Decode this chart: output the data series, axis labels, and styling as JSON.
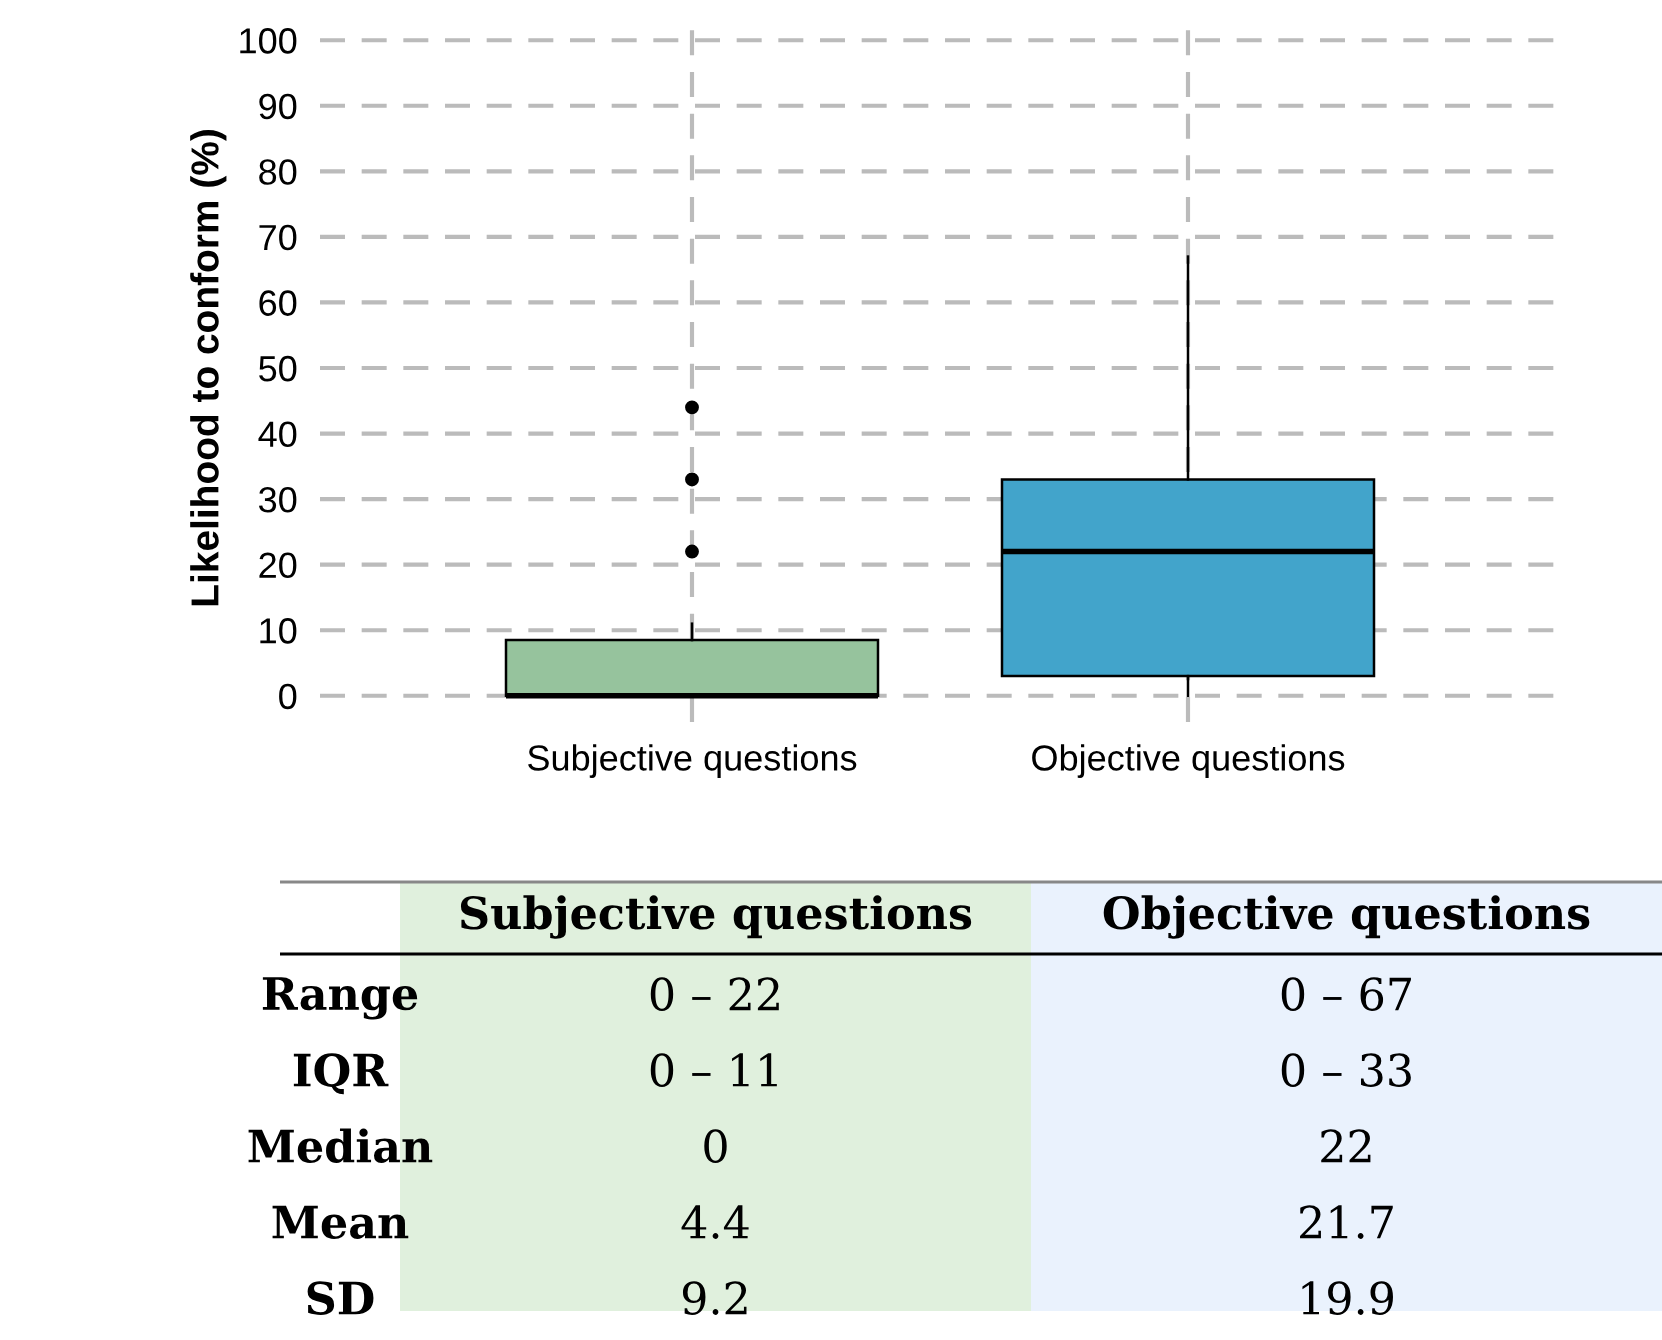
{
  "chart_data": [
    {
      "type": "box",
      "ylabel": "Likelihood to conform (%)",
      "categories": [
        "Subjective questions",
        "Objective questions"
      ],
      "colors": [
        "#96c39d",
        "#42a4cb"
      ],
      "boxes": [
        {
          "low": 0,
          "q1": 0,
          "median": 0,
          "q3": 8.5,
          "high": 11,
          "outliers": [
            22,
            33,
            44
          ]
        },
        {
          "low": 0,
          "q1": 3,
          "median": 22,
          "q3": 33,
          "high": 67
        }
      ],
      "ylim": [
        -4,
        104
      ],
      "yticks": [
        0,
        10,
        20,
        30,
        40,
        50,
        60,
        70,
        80,
        90,
        100
      ],
      "grid": true
    },
    {
      "type": "other",
      "categories": [
        "Subjective questions",
        "Objective questions"
      ],
      "y_categories": [
        "Range",
        "IQR",
        "Median",
        "Mean",
        "SD"
      ],
      "colors": [
        "#e0f0dd",
        "#eaf2fd"
      ],
      "cell_labels": [
        [
          "0 – 22",
          "0 – 67"
        ],
        [
          "0 – 11",
          "0 – 33"
        ],
        [
          "0",
          "22"
        ],
        [
          "4.4",
          "21.7"
        ],
        [
          "9.2",
          "19.9"
        ]
      ]
    }
  ]
}
